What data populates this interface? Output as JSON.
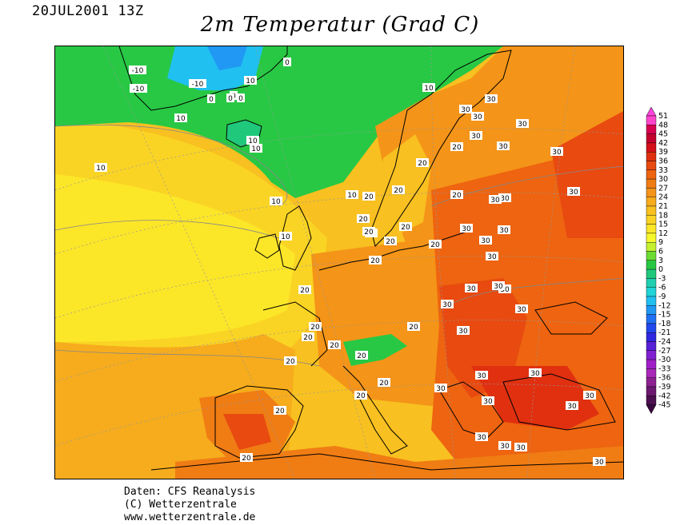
{
  "header": {
    "date": "20JUL2001 13Z",
    "title": "2m Temperatur (Grad C)"
  },
  "map": {
    "contour_labels": [
      {
        "text": "-10"
      },
      {
        "text": "-10"
      },
      {
        "text": "-10"
      },
      {
        "text": "10"
      },
      {
        "text": "0"
      },
      {
        "text": "0"
      },
      {
        "text": "0"
      },
      {
        "text": "0"
      },
      {
        "text": "0"
      },
      {
        "text": "10"
      },
      {
        "text": "10"
      },
      {
        "text": "10"
      },
      {
        "text": "10"
      },
      {
        "text": "10"
      },
      {
        "text": "10"
      },
      {
        "text": "10"
      },
      {
        "text": "10"
      },
      {
        "text": "10"
      },
      {
        "text": "20"
      },
      {
        "text": "20"
      },
      {
        "text": "20"
      },
      {
        "text": "20"
      },
      {
        "text": "20"
      },
      {
        "text": "20"
      },
      {
        "text": "20"
      },
      {
        "text": "20"
      },
      {
        "text": "20"
      },
      {
        "text": "20"
      },
      {
        "text": "20"
      },
      {
        "text": "20"
      },
      {
        "text": "20"
      },
      {
        "text": "20"
      },
      {
        "text": "20"
      },
      {
        "text": "20"
      },
      {
        "text": "20"
      },
      {
        "text": "20"
      },
      {
        "text": "20"
      },
      {
        "text": "20"
      },
      {
        "text": "20"
      },
      {
        "text": "20"
      },
      {
        "text": "30"
      },
      {
        "text": "30"
      },
      {
        "text": "30"
      },
      {
        "text": "30"
      },
      {
        "text": "30"
      },
      {
        "text": "30"
      },
      {
        "text": "30"
      },
      {
        "text": "30"
      },
      {
        "text": "30"
      },
      {
        "text": "30"
      },
      {
        "text": "30"
      },
      {
        "text": "30"
      },
      {
        "text": "30"
      },
      {
        "text": "30"
      },
      {
        "text": "30"
      },
      {
        "text": "30"
      },
      {
        "text": "30"
      },
      {
        "text": "30"
      },
      {
        "text": "30"
      },
      {
        "text": "30"
      },
      {
        "text": "30"
      },
      {
        "text": "30"
      },
      {
        "text": "30"
      },
      {
        "text": "30"
      },
      {
        "text": "30"
      },
      {
        "text": "30"
      },
      {
        "text": "30"
      },
      {
        "text": "30"
      },
      {
        "text": "30"
      },
      {
        "text": "30"
      }
    ]
  },
  "legend": {
    "labels": [
      "51",
      "48",
      "45",
      "42",
      "39",
      "36",
      "33",
      "30",
      "27",
      "24",
      "21",
      "18",
      "15",
      "12",
      "9",
      "6",
      "3",
      "0",
      "-3",
      "-6",
      "-9",
      "-12",
      "-15",
      "-18",
      "-21",
      "-24",
      "-27",
      "-30",
      "-33",
      "-36",
      "-39",
      "-42",
      "-45"
    ],
    "colors": [
      "#ff44cc",
      "#d80050",
      "#c4002e",
      "#d4101a",
      "#e03010",
      "#e84a10",
      "#ee6410",
      "#f07c14",
      "#f49418",
      "#f6ac1c",
      "#f8c020",
      "#fad424",
      "#fce628",
      "#f6f82c",
      "#c4f030",
      "#6cdc34",
      "#28c844",
      "#20c87c",
      "#20d0b0",
      "#20d4d8",
      "#20c0f0",
      "#2098f4",
      "#2070f4",
      "#2048ec",
      "#3028e0",
      "#5820d8",
      "#8020d0",
      "#a020c8",
      "#a828b8",
      "#8c2090",
      "#6c1870",
      "#4c1050"
    ],
    "top_cap_color": "#ff44dd",
    "bottom_cap_color": "#3a0840"
  },
  "footer": {
    "line1": "Daten: CFS Reanalysis",
    "line2": "(C) Wetterzentrale",
    "line3": "www.wetterzentrale.de"
  }
}
